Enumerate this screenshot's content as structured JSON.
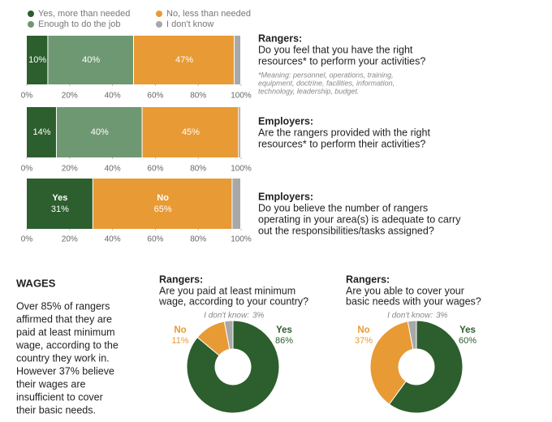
{
  "chart_data": [
    {
      "type": "bar",
      "orientation": "horizontal",
      "stacked": true,
      "legend": "top-left",
      "title": "Rangers:",
      "subtitle": [
        "Do you feel that you have the right",
        "resources* to perform your activities?"
      ],
      "note": [
        "*Meaning: personnel, operations, training,",
        "equipment, doctrine, facilities, information,",
        "technology, leadership, budget."
      ],
      "series": [
        {
          "name": "Yes, more than needed",
          "color": "#2d5e2e",
          "values": [
            10
          ],
          "value_labels": [
            "10%"
          ]
        },
        {
          "name": "Enough to do the job",
          "color": "#6e9872",
          "values": [
            40
          ],
          "value_labels": [
            "40%"
          ]
        },
        {
          "name": "No, less than needed",
          "color": "#e89a35",
          "values": [
            47
          ],
          "value_labels": [
            "47%"
          ]
        },
        {
          "name": "I don't know",
          "color": "#a8a8a8",
          "values": [
            3
          ]
        }
      ],
      "xlim": [
        0,
        100
      ],
      "xticks": [
        {
          "value": 0,
          "label": "0%"
        },
        {
          "value": 20,
          "label": "20%"
        },
        {
          "value": 40,
          "label": "40%"
        },
        {
          "value": 60,
          "label": "60%"
        },
        {
          "value": 80,
          "label": "80%"
        },
        {
          "value": 100,
          "label": "100%"
        }
      ]
    },
    {
      "type": "bar",
      "orientation": "horizontal",
      "stacked": true,
      "title": "Employers:",
      "subtitle": [
        "Are the rangers provided with the right",
        "resources* to perform their activities?"
      ],
      "series": [
        {
          "color": "#2d5e2e",
          "values": [
            14
          ],
          "value_labels": [
            "14%"
          ]
        },
        {
          "color": "#6e9872",
          "values": [
            40
          ],
          "value_labels": [
            "40%"
          ]
        },
        {
          "color": "#e89a35",
          "values": [
            45
          ],
          "value_labels": [
            "45%"
          ]
        },
        {
          "color": "#a8a8a8",
          "values": [
            1
          ]
        }
      ],
      "xlim": [
        0,
        100
      ],
      "xticks": [
        {
          "value": 0,
          "label": "0%"
        },
        {
          "value": 20,
          "label": "20%"
        },
        {
          "value": 40,
          "label": "40%"
        },
        {
          "value": 60,
          "label": "60%"
        },
        {
          "value": 80,
          "label": "80%"
        },
        {
          "value": 100,
          "label": "100%"
        }
      ]
    },
    {
      "type": "bar",
      "orientation": "horizontal",
      "stacked": true,
      "title": "Employers:",
      "subtitle": [
        "Do you believe the number of rangers",
        "operating in your area(s) is adequate to carry",
        "out the responsibilities/tasks assigned?"
      ],
      "series": [
        {
          "name": "Yes",
          "color": "#2d5e2e",
          "values": [
            31
          ],
          "value_labels": [
            "31%"
          ]
        },
        {
          "name": "No",
          "color": "#e89a35",
          "values": [
            65
          ],
          "value_labels": [
            "65%"
          ]
        },
        {
          "color": "#a8a8a8",
          "values": [
            4
          ]
        }
      ],
      "xlim": [
        0,
        100
      ],
      "xticks": [
        {
          "value": 0,
          "label": "0%"
        },
        {
          "value": 20,
          "label": "20%"
        },
        {
          "value": 40,
          "label": "40%"
        },
        {
          "value": 60,
          "label": "60%"
        },
        {
          "value": 80,
          "label": "80%"
        },
        {
          "value": 100,
          "label": "100%"
        }
      ]
    },
    {
      "type": "pie",
      "donut": true,
      "title": "Rangers:",
      "subtitle": [
        "Are you paid at least minimum",
        "wage, according to your country?"
      ],
      "categories": [
        "Yes",
        "No",
        "I don't know:"
      ],
      "values": [
        86,
        11,
        3
      ],
      "value_labels": [
        "86%",
        "11%",
        "3%"
      ],
      "colors": [
        "#2d5e2e",
        "#e89a35",
        "#a8a8a8"
      ]
    },
    {
      "type": "pie",
      "donut": true,
      "title": "Rangers:",
      "subtitle": [
        "Are you able to cover your",
        "basic needs with your wages?"
      ],
      "categories": [
        "Yes",
        "No",
        "I don't know:"
      ],
      "values": [
        60,
        37,
        3
      ],
      "value_labels": [
        "60%",
        "37%",
        "3%"
      ],
      "colors": [
        "#2d5e2e",
        "#e89a35",
        "#a8a8a8"
      ]
    }
  ],
  "wages": {
    "heading": "WAGES",
    "text": [
      "Over 85% of rangers",
      "affirmed that they are",
      "paid at least minimum",
      "wage, according to the",
      "country they work in.",
      "However 37% believe",
      "their wages are",
      "insufficient to cover",
      "their basic needs."
    ]
  }
}
